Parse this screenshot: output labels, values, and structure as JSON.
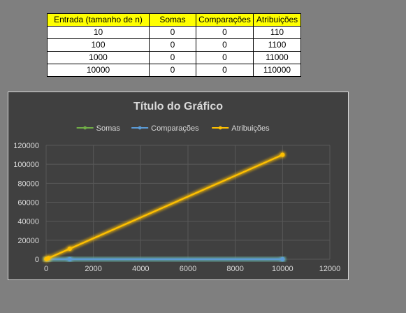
{
  "table": {
    "headers": [
      "Entrada (tamanho de n)",
      "Somas",
      "Comparações",
      "Atribuições"
    ],
    "rows": [
      [
        "10",
        "0",
        "0",
        "110"
      ],
      [
        "100",
        "0",
        "0",
        "1100"
      ],
      [
        "1000",
        "0",
        "0",
        "11000"
      ],
      [
        "10000",
        "0",
        "0",
        "110000"
      ]
    ],
    "header_bg": "#ffff00"
  },
  "chart_data": {
    "type": "scatter",
    "title": "Título do Gráfico",
    "xlabel": "",
    "ylabel": "",
    "xlim": [
      0,
      12000
    ],
    "ylim": [
      0,
      120000
    ],
    "x_ticks": [
      "0",
      "2000",
      "4000",
      "6000",
      "8000",
      "10000",
      "12000"
    ],
    "y_ticks": [
      "0",
      "20000",
      "40000",
      "60000",
      "80000",
      "100000",
      "120000"
    ],
    "grid": true,
    "legend_position": "top",
    "lines_with_markers": true,
    "x": [
      10,
      100,
      1000,
      10000
    ],
    "series": [
      {
        "name": "Somas",
        "values": [
          0,
          0,
          0,
          0
        ],
        "color": "#70ad47"
      },
      {
        "name": "Comparações",
        "values": [
          0,
          0,
          0,
          0
        ],
        "color": "#5b9bd5"
      },
      {
        "name": "Atribuições",
        "values": [
          110,
          1100,
          11000,
          110000
        ],
        "color": "#ffc000"
      }
    ],
    "background": "#404040",
    "text_color": "#d9d9d9",
    "grid_color": "#595959"
  }
}
